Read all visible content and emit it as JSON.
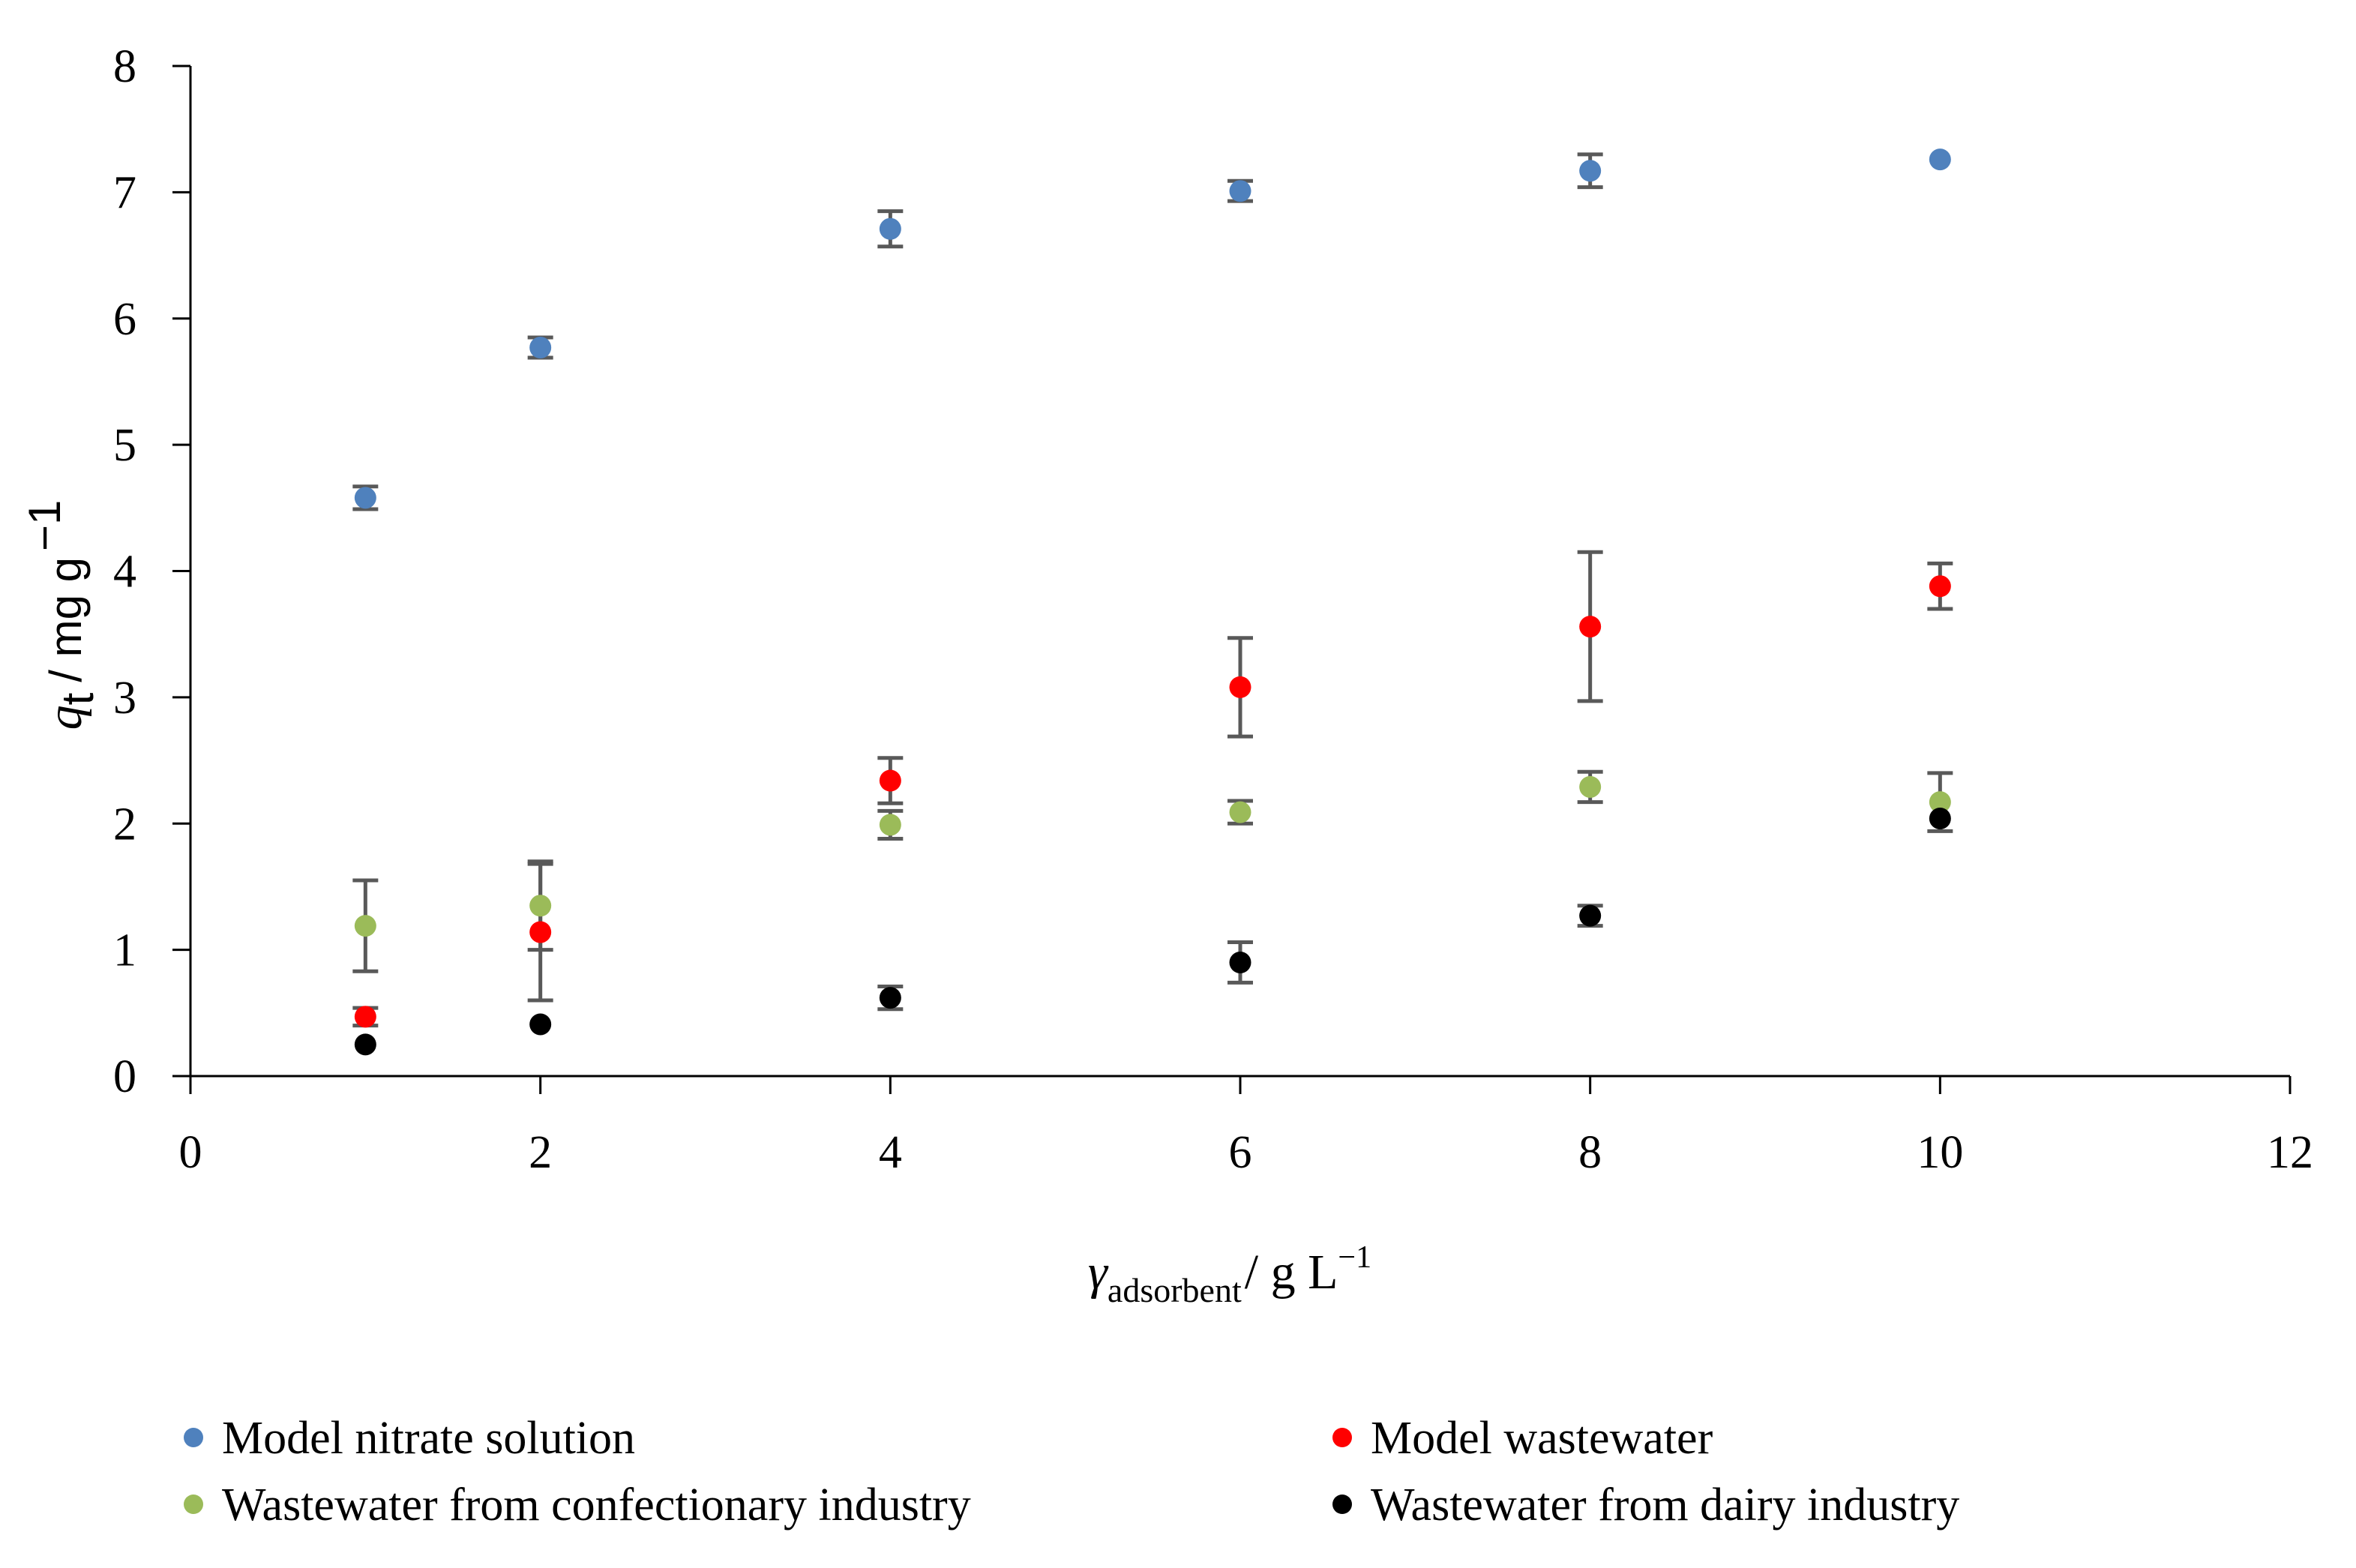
{
  "chart_data": {
    "type": "scatter",
    "title": "",
    "xlabel": {
      "symbol": "γ",
      "subscript": "adsorbent",
      "unit": "/ g L",
      "sup": "−1"
    },
    "ylabel": {
      "symbol": "q",
      "subscript": "t",
      "unit": "/ mg g",
      "sup": "−1"
    },
    "xlim": [
      0,
      12
    ],
    "ylim": [
      0,
      8
    ],
    "xticks": [
      0,
      2,
      4,
      6,
      8,
      10,
      12
    ],
    "yticks": [
      0,
      1,
      2,
      3,
      4,
      5,
      6,
      7,
      8
    ],
    "grid": false,
    "legend_position": "bottom",
    "series": [
      {
        "name": "Model nitrate solution",
        "color": "#4f81bd",
        "x": [
          1,
          2,
          4,
          6,
          8,
          10
        ],
        "y": [
          4.58,
          5.77,
          6.71,
          7.01,
          7.17,
          7.26
        ],
        "err": [
          0.09,
          0.08,
          0.14,
          0.08,
          0.13,
          0.0
        ]
      },
      {
        "name": "Model wastewater",
        "color": "#ff0000",
        "x": [
          1,
          2,
          4,
          6,
          8,
          10
        ],
        "y": [
          0.47,
          1.14,
          2.34,
          3.08,
          3.56,
          3.88
        ],
        "err": [
          0.07,
          0.54,
          0.18,
          0.39,
          0.59,
          0.18
        ]
      },
      {
        "name": "Wastewater from confectionary industry",
        "color": "#9bbb59",
        "x": [
          1,
          2,
          4,
          6,
          8,
          10
        ],
        "y": [
          1.19,
          1.35,
          1.99,
          2.09,
          2.29,
          2.17
        ],
        "err": [
          0.36,
          0.35,
          0.11,
          0.09,
          0.12,
          0.23
        ]
      },
      {
        "name": "Wastewater from dairy industry",
        "color": "#000000",
        "x": [
          1,
          2,
          4,
          6,
          8,
          10
        ],
        "y": [
          0.25,
          0.41,
          0.62,
          0.9,
          1.27,
          2.04
        ],
        "err": [
          0.0,
          0.0,
          0.09,
          0.16,
          0.08,
          0.0
        ]
      }
    ]
  }
}
